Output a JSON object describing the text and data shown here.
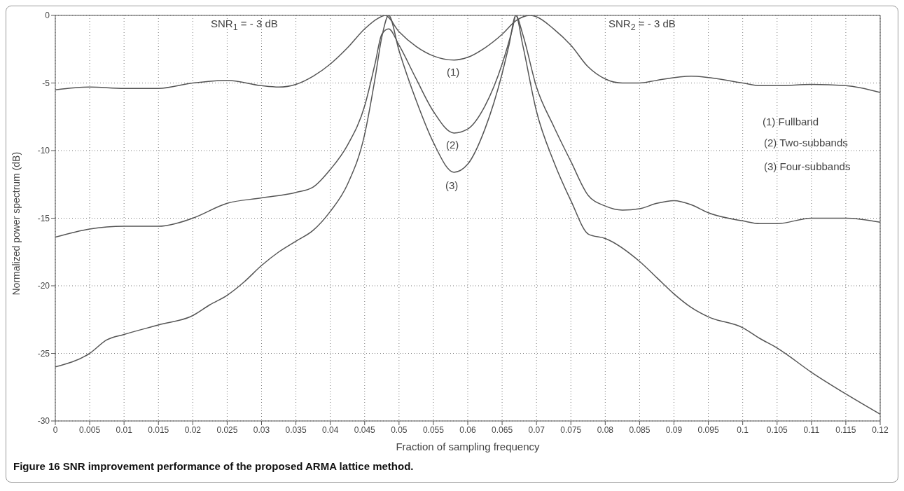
{
  "chart_data": {
    "type": "line",
    "title": "Figure 16 SNR improvement performance of the proposed ARMA lattice method.",
    "xlabel": "Fraction of sampling frequency",
    "ylabel": "Normalized power spectrum (dB)",
    "xlim": [
      0,
      0.12
    ],
    "xticks": [
      0,
      0.005,
      0.01,
      0.015,
      0.02,
      0.025,
      0.03,
      0.035,
      0.04,
      0.045,
      0.05,
      0.055,
      0.06,
      0.065,
      0.07,
      0.075,
      0.08,
      0.085,
      0.09,
      0.095,
      0.1,
      0.105,
      0.11,
      0.115,
      0.12
    ],
    "ylim": [
      -30,
      0
    ],
    "yticks": [
      -30,
      -25,
      -20,
      -15,
      -10,
      -5,
      0
    ],
    "grid": true,
    "marker": "none",
    "line_style": "solid",
    "series": [
      {
        "color": "#555555",
        "x": [
          0,
          0.005,
          0.01,
          0.015,
          0.02,
          0.025,
          0.03,
          0.0325,
          0.035,
          0.0375,
          0.04,
          0.0425,
          0.045,
          0.047,
          0.048,
          0.05,
          0.0525,
          0.055,
          0.058,
          0.06,
          0.0625,
          0.065,
          0.067,
          0.069,
          0.07,
          0.0725,
          0.075,
          0.0775,
          0.08,
          0.0825,
          0.085,
          0.0875,
          0.0925,
          0.095,
          0.1,
          0.1025,
          0.105,
          0.11,
          0.115,
          0.12
        ],
        "values": [
          -5.5,
          -5.3,
          -5.4,
          -5.4,
          -5.0,
          -4.8,
          -5.2,
          -5.3,
          -5.1,
          -4.5,
          -3.6,
          -2.4,
          -1.0,
          -0.2,
          0,
          -1.2,
          -2.3,
          -3.0,
          -3.3,
          -3.1,
          -2.4,
          -1.4,
          -0.4,
          0,
          -0.1,
          -1.0,
          -2.2,
          -3.8,
          -4.7,
          -5.0,
          -5.0,
          -4.8,
          -4.5,
          -4.6,
          -5.0,
          -5.2,
          -5.2,
          -5.1,
          -5.2,
          -5.7
        ]
      },
      {
        "color": "#555555",
        "x": [
          0,
          0.005,
          0.01,
          0.015,
          0.0175,
          0.02,
          0.025,
          0.03,
          0.035,
          0.0375,
          0.04,
          0.0425,
          0.045,
          0.0465,
          0.0475,
          0.0485,
          0.05,
          0.0525,
          0.055,
          0.058,
          0.06,
          0.0625,
          0.065,
          0.0665,
          0.067,
          0.068,
          0.07,
          0.0725,
          0.075,
          0.0775,
          0.08,
          0.0825,
          0.085,
          0.0875,
          0.09,
          0.0925,
          0.095,
          0.1,
          0.1025,
          0.105,
          0.11,
          0.1125,
          0.115,
          0.12
        ],
        "values": [
          -16.4,
          -15.8,
          -15.6,
          -15.6,
          -15.4,
          -15.0,
          -13.9,
          -13.5,
          -13.1,
          -12.7,
          -11.4,
          -9.6,
          -6.7,
          -3.6,
          -1.4,
          -1.0,
          -2.2,
          -4.7,
          -7.1,
          -8.7,
          -8.4,
          -6.7,
          -3.6,
          -1.0,
          0,
          -1.4,
          -5.3,
          -8.2,
          -10.8,
          -13.3,
          -14.1,
          -14.4,
          -14.3,
          -13.9,
          -13.7,
          -14.0,
          -14.6,
          -15.2,
          -15.4,
          -15.4,
          -15.0,
          -15.0,
          -15.0,
          -15.3
        ]
      },
      {
        "color": "#555555",
        "x": [
          0,
          0.005,
          0.0075,
          0.01,
          0.015,
          0.02,
          0.0225,
          0.025,
          0.0275,
          0.03,
          0.0325,
          0.035,
          0.0375,
          0.04,
          0.0425,
          0.045,
          0.0465,
          0.0475,
          0.0485,
          0.05,
          0.0525,
          0.055,
          0.058,
          0.06,
          0.0625,
          0.065,
          0.066,
          0.067,
          0.068,
          0.07,
          0.0725,
          0.075,
          0.0776,
          0.08,
          0.085,
          0.0875,
          0.09,
          0.0925,
          0.095,
          0.1,
          0.1025,
          0.105,
          0.11,
          0.115,
          0.12
        ],
        "values": [
          -26.0,
          -25.0,
          -24.0,
          -23.6,
          -22.9,
          -22.2,
          -21.4,
          -20.7,
          -19.7,
          -18.5,
          -17.5,
          -16.7,
          -15.9,
          -14.5,
          -12.5,
          -8.8,
          -4.7,
          -1.6,
          0,
          -2.6,
          -6.3,
          -9.4,
          -11.6,
          -11.0,
          -8.4,
          -4.3,
          -2.2,
          0,
          -2.2,
          -7.1,
          -10.8,
          -13.7,
          -16.2,
          -16.5,
          -18.2,
          -19.4,
          -20.6,
          -21.6,
          -22.3,
          -23.1,
          -23.9,
          -24.6,
          -26.4,
          -28.0,
          -29.5
        ]
      }
    ],
    "annotations": [
      "(1)",
      "(2)",
      "(3)",
      "SNR$_{1}$ = - 3 dB",
      "SNR$_{2}$ = - 3 dB",
      "(1) Fullband",
      "(2) Two-subbands",
      "(3) Four-subbands"
    ]
  }
}
